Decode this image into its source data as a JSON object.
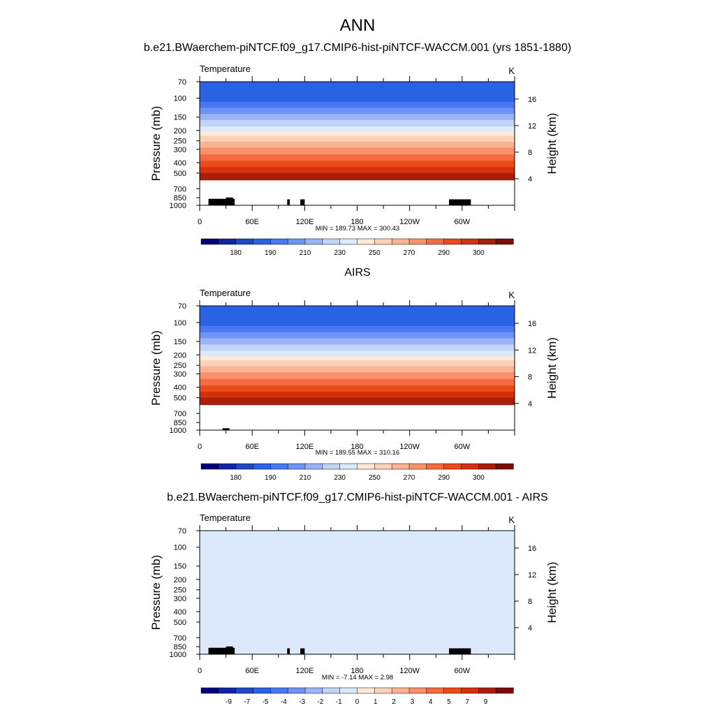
{
  "figure": {
    "title": "ANN"
  },
  "colorbar_colors": {
    "sequential": [
      "#00007f",
      "#0f24a6",
      "#1d48c8",
      "#2a62e6",
      "#4879f2",
      "#6d93f5",
      "#9ab4f5",
      "#c1d3f6",
      "#dce9fb",
      "#fde9d6",
      "#fcd1b8",
      "#fbb393",
      "#f8906b",
      "#f56a40",
      "#ec4a18",
      "#d4300b",
      "#a81e0a",
      "#7c0b06"
    ]
  },
  "chart_data": [
    {
      "type": "heatmap",
      "title": "b.e21.BWaerchem-piNTCF.f09_g17.CMIP6-hist-piNTCF-WACCM.001 (yrs 1851-1880)",
      "variable": "Temperature",
      "units": "K",
      "xlabel": "",
      "ylabel": "Pressure (mb)",
      "ylabel_right": "Height (km)",
      "x_ticks": [
        "0",
        "60E",
        "120E",
        "180",
        "120W",
        "60W"
      ],
      "x_tick_lon": [
        0,
        60,
        120,
        180,
        240,
        300
      ],
      "xlim": [
        0,
        360
      ],
      "y_ticks": [
        "70",
        "100",
        "150",
        "200",
        "250",
        "300",
        "400",
        "500",
        "700",
        "850",
        "1000"
      ],
      "y_tick_values": [
        70,
        100,
        150,
        200,
        250,
        300,
        400,
        500,
        700,
        850,
        1000
      ],
      "ylim": [
        70,
        1000
      ],
      "y_scale": "log",
      "height_ticks": [
        "16",
        "12",
        "8",
        "4"
      ],
      "height_tick_values": [
        16,
        12,
        8,
        4
      ],
      "stats": "MIN = 189.73  MAX = 300.43",
      "colorbar_labels": [
        "180",
        "190",
        "210",
        "230",
        "250",
        "270",
        "290",
        "300"
      ],
      "band_edges_p": [
        70,
        108,
        123,
        140,
        160,
        183,
        205,
        225,
        255,
        290,
        335,
        385,
        440,
        500,
        580,
        660,
        760,
        900,
        1000
      ],
      "band_colors": [
        "#2a62e6",
        "#4879f2",
        "#6d93f5",
        "#9ab4f5",
        "#c1d3f6",
        "#dce9fb",
        "#fde9d6",
        "#fcd1b8",
        "#fbb393",
        "#f8906b",
        "#f56a40",
        "#ec4a18",
        "#d4300b",
        "#a81e0a"
      ],
      "terrain": [
        [
          10,
          40,
          870
        ],
        [
          30,
          38,
          845
        ],
        [
          100,
          103,
          880
        ],
        [
          115,
          120,
          880
        ],
        [
          285,
          310,
          880
        ]
      ]
    },
    {
      "type": "heatmap",
      "title": "AIRS",
      "variable": "Temperature",
      "units": "K",
      "xlabel": "",
      "ylabel": "Pressure (mb)",
      "ylabel_right": "Height (km)",
      "x_ticks": [
        "0",
        "60E",
        "120E",
        "180",
        "120W",
        "60W"
      ],
      "x_tick_lon": [
        0,
        60,
        120,
        180,
        240,
        300
      ],
      "xlim": [
        0,
        360
      ],
      "y_ticks": [
        "70",
        "100",
        "150",
        "200",
        "250",
        "300",
        "400",
        "500",
        "700",
        "850",
        "1000"
      ],
      "y_tick_values": [
        70,
        100,
        150,
        200,
        250,
        300,
        400,
        500,
        700,
        850,
        1000
      ],
      "ylim": [
        70,
        1000
      ],
      "y_scale": "log",
      "height_ticks": [
        "16",
        "12",
        "8",
        "4"
      ],
      "height_tick_values": [
        16,
        12,
        8,
        4
      ],
      "stats": "MIN = 189.55  MAX = 310.16",
      "colorbar_labels": [
        "180",
        "190",
        "210",
        "230",
        "250",
        "270",
        "290",
        "300"
      ],
      "band_edges_p": [
        70,
        108,
        123,
        140,
        160,
        183,
        205,
        225,
        255,
        290,
        335,
        385,
        440,
        500,
        580,
        660,
        760,
        900,
        1000
      ],
      "band_colors": [
        "#2a62e6",
        "#4879f2",
        "#6d93f5",
        "#9ab4f5",
        "#c1d3f6",
        "#dce9fb",
        "#fde9d6",
        "#fcd1b8",
        "#fbb393",
        "#f8906b",
        "#f56a40",
        "#ec4a18",
        "#d4300b",
        "#a81e0a"
      ],
      "terrain": [
        [
          26,
          34,
          960
        ]
      ]
    },
    {
      "type": "heatmap",
      "title": "b.e21.BWaerchem-piNTCF.f09_g17.CMIP6-hist-piNTCF-WACCM.001 - AIRS",
      "variable": "Temperature",
      "units": "K",
      "xlabel": "",
      "ylabel": "Pressure (mb)",
      "ylabel_right": "Height (km)",
      "x_ticks": [
        "0",
        "60E",
        "120E",
        "180",
        "120W",
        "60W"
      ],
      "x_tick_lon": [
        0,
        60,
        120,
        180,
        240,
        300
      ],
      "xlim": [
        0,
        360
      ],
      "y_ticks": [
        "70",
        "100",
        "150",
        "200",
        "250",
        "300",
        "400",
        "500",
        "700",
        "850",
        "1000"
      ],
      "y_tick_values": [
        70,
        100,
        150,
        200,
        250,
        300,
        400,
        500,
        700,
        850,
        1000
      ],
      "ylim": [
        70,
        1000
      ],
      "y_scale": "log",
      "height_ticks": [
        "16",
        "12",
        "8",
        "4"
      ],
      "height_tick_values": [
        16,
        12,
        8,
        4
      ],
      "stats": "MIN =  -7.14  MAX =   2.98",
      "colorbar_labels": [
        "-9",
        "-7",
        "-5",
        "-4",
        "-3",
        "-2",
        "-1",
        "0",
        "1",
        "2",
        "3",
        "4",
        "5",
        "7",
        "9"
      ],
      "background_color": "#dce9fb",
      "terrain": [
        [
          10,
          40,
          870
        ],
        [
          30,
          38,
          845
        ],
        [
          100,
          103,
          880
        ],
        [
          115,
          120,
          880
        ],
        [
          285,
          310,
          880
        ]
      ]
    }
  ]
}
